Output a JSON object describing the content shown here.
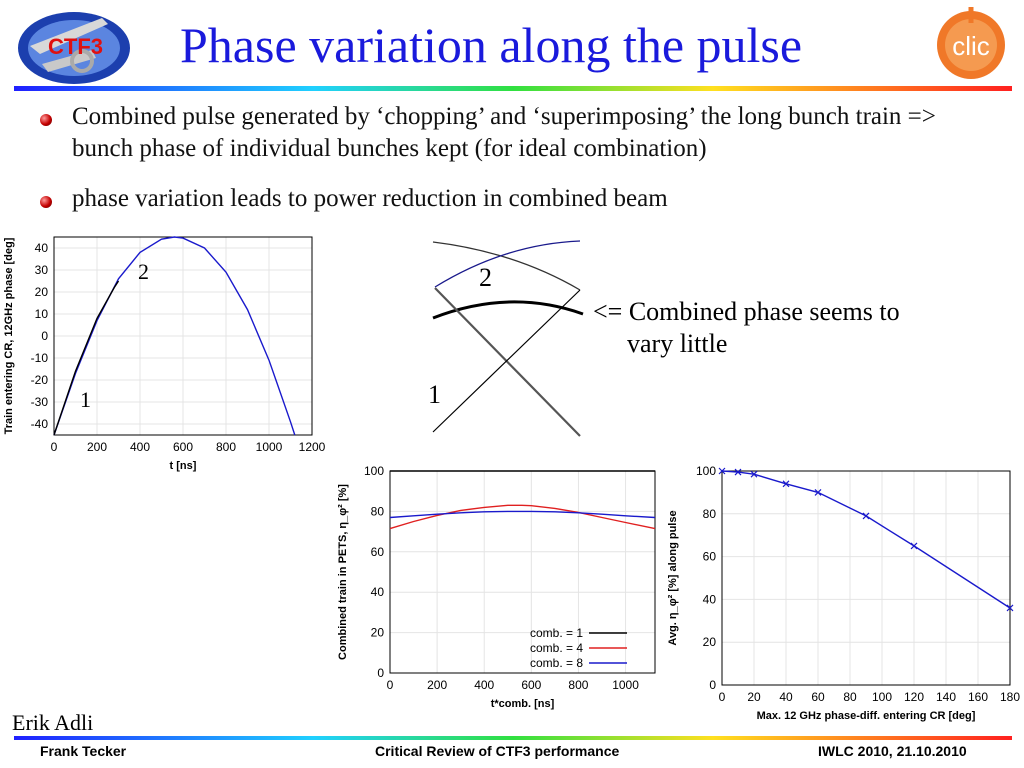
{
  "slide": {
    "title": "Phase variation along the pulse",
    "bullets": [
      "Combined pulse generated by ‘chopping’ and ‘superimposing’ the long bunch train => bunch phase of individual bunches kept (for ideal combination)",
      "phase variation leads to power reduction in combined beam"
    ],
    "logos": {
      "left_text": "CTF3",
      "right_text": "clic"
    },
    "diagram": {
      "label_top": "2",
      "label_bottom": "1",
      "note_line1": "<= Combined phase seems to",
      "note_line2": "vary little"
    },
    "author": "Erik Adli",
    "footer": {
      "left": "Frank Tecker",
      "center": "Critical Review of CTF3 performance",
      "right": "IWLC 2010, 21.10.2010"
    },
    "colors": {
      "title": "#1a1adc",
      "bullet": "#c40000",
      "series_blue": "#1a1acc",
      "series_red": "#e02020"
    }
  },
  "chart_data": [
    {
      "type": "line",
      "xlabel": "t [ns]",
      "ylabel": "Train entering CR, 12GHz phase [deg]",
      "xlim": [
        0,
        1200
      ],
      "ylim": [
        -45,
        45
      ],
      "xticks": [
        "0",
        "200",
        "400",
        "600",
        "800",
        "1000",
        "1200"
      ],
      "yticks": [
        "-40",
        "-30",
        "-20",
        "-10",
        "0",
        "10",
        "20",
        "30",
        "40"
      ],
      "annotations": [
        "2",
        "1"
      ],
      "series": [
        {
          "color": "#1a1acc",
          "x": [
            0,
            100,
            200,
            300,
            400,
            500,
            560,
            600,
            700,
            800,
            900,
            1000,
            1100,
            1120
          ],
          "y": [
            -45,
            -17,
            7,
            26,
            38,
            44,
            45,
            44.5,
            40,
            29,
            12,
            -11,
            -39,
            -45
          ]
        },
        {
          "color": "#000000",
          "x": [
            0,
            100,
            200,
            280,
            300
          ],
          "y": [
            -45,
            -16,
            8,
            22,
            25
          ]
        }
      ]
    },
    {
      "type": "line",
      "xlabel": "t*comb. [ns]",
      "ylabel": "Combined train in PETS, η_φ² [%]",
      "xlim": [
        0,
        1125
      ],
      "ylim": [
        0,
        100
      ],
      "xticks": [
        "0",
        "200",
        "400",
        "600",
        "800",
        "1000"
      ],
      "yticks": [
        "0",
        "20",
        "40",
        "60",
        "80",
        "100"
      ],
      "legend": "bottom-right",
      "series": [
        {
          "name": "comb. = 1",
          "color": "#000000",
          "x": [
            0,
            560,
            1125
          ],
          "y": [
            100,
            100,
            100
          ]
        },
        {
          "name": "comb. = 4",
          "color": "#e02020",
          "x": [
            0,
            100,
            200,
            300,
            400,
            500,
            560,
            600,
            700,
            800,
            900,
            1000,
            1125
          ],
          "y": [
            71.5,
            75,
            78,
            80.5,
            82,
            83,
            83,
            82.8,
            81.5,
            79.5,
            77,
            74.5,
            71.5
          ]
        },
        {
          "name": "comb. = 8",
          "color": "#1a1acc",
          "x": [
            0,
            100,
            200,
            300,
            400,
            500,
            560,
            600,
            700,
            800,
            900,
            1000,
            1125
          ],
          "y": [
            77,
            77.8,
            78.6,
            79.3,
            79.8,
            80,
            80,
            80,
            79.8,
            79.3,
            78.6,
            77.8,
            77
          ]
        }
      ]
    },
    {
      "type": "line",
      "xlabel": "Max. 12 GHz phase-diff. entering CR [deg]",
      "ylabel": "Avg. η_φ² [%] along pulse",
      "xlim": [
        0,
        180
      ],
      "ylim": [
        0,
        100
      ],
      "xticks": [
        "0",
        "20",
        "40",
        "60",
        "80",
        "100",
        "120",
        "140",
        "160",
        "180"
      ],
      "yticks": [
        "0",
        "20",
        "40",
        "60",
        "80",
        "100"
      ],
      "series": [
        {
          "color": "#1a1acc",
          "x": [
            0,
            10,
            20,
            40,
            60,
            90,
            120,
            180
          ],
          "y": [
            100,
            99.5,
            98.5,
            94,
            90,
            79,
            65,
            36
          ]
        }
      ]
    }
  ]
}
